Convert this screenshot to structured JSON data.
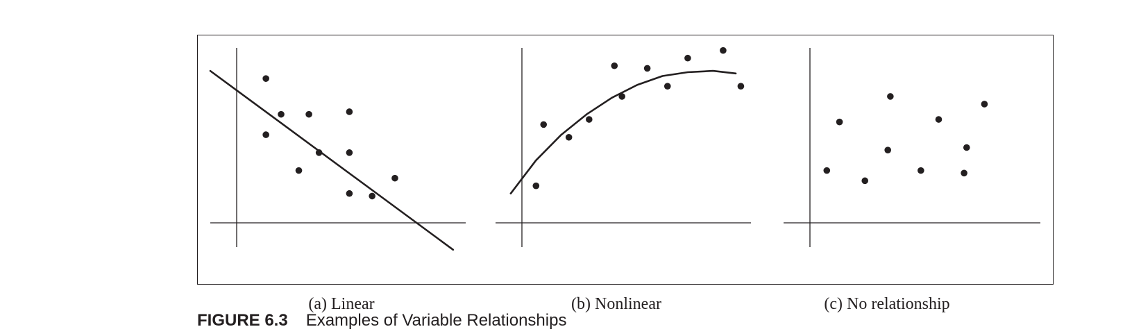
{
  "figure": {
    "number": "FIGURE 6.3",
    "title": "Examples of Variable Relationships"
  },
  "colors": {
    "ink": "#231f20"
  },
  "chart_data": [
    {
      "type": "scatter",
      "caption": "(a) Linear",
      "xlim": [
        -1.1,
        9.0
      ],
      "ylim": [
        -0.9,
        6.9
      ],
      "points": [
        [
          1.1,
          5.7
        ],
        [
          1.7,
          4.3
        ],
        [
          2.8,
          4.3
        ],
        [
          4.4,
          4.4
        ],
        [
          1.1,
          3.5
        ],
        [
          3.2,
          2.8
        ],
        [
          4.4,
          2.8
        ],
        [
          2.4,
          2.1
        ],
        [
          4.4,
          1.2
        ],
        [
          5.3,
          1.1
        ],
        [
          6.2,
          1.8
        ]
      ],
      "fit": {
        "kind": "line",
        "from": [
          -1.1,
          6.0
        ],
        "to": [
          8.5,
          -1.0
        ]
      }
    },
    {
      "type": "scatter",
      "caption": "(b) Nonlinear",
      "xlim": [
        -1.1,
        9.0
      ],
      "ylim": [
        -0.9,
        6.9
      ],
      "points": [
        [
          0.5,
          1.5
        ],
        [
          0.8,
          3.9
        ],
        [
          1.8,
          3.4
        ],
        [
          2.6,
          4.1
        ],
        [
          3.6,
          6.2
        ],
        [
          3.9,
          5.0
        ],
        [
          4.9,
          6.1
        ],
        [
          5.7,
          5.4
        ],
        [
          6.5,
          6.5
        ],
        [
          7.9,
          6.8
        ],
        [
          8.6,
          5.4
        ]
      ],
      "fit": {
        "kind": "curve",
        "x": [
          -0.5,
          0.5,
          1.5,
          2.5,
          3.5,
          4.5,
          5.5,
          6.5,
          7.5,
          8.4
        ],
        "y": [
          1.2,
          2.5,
          3.5,
          4.3,
          4.95,
          5.45,
          5.8,
          5.95,
          6.0,
          5.9
        ]
      }
    },
    {
      "type": "scatter",
      "caption": "(c) No relationship",
      "xlim": [
        -1.1,
        9.0
      ],
      "ylim": [
        -0.9,
        6.9
      ],
      "points": [
        [
          0.6,
          2.1
        ],
        [
          1.1,
          4.0
        ],
        [
          2.1,
          1.7
        ],
        [
          3.1,
          5.0
        ],
        [
          3.0,
          2.9
        ],
        [
          4.3,
          2.1
        ],
        [
          5.0,
          4.1
        ],
        [
          6.0,
          2.0
        ],
        [
          6.1,
          3.0
        ],
        [
          6.8,
          4.7
        ]
      ]
    }
  ]
}
